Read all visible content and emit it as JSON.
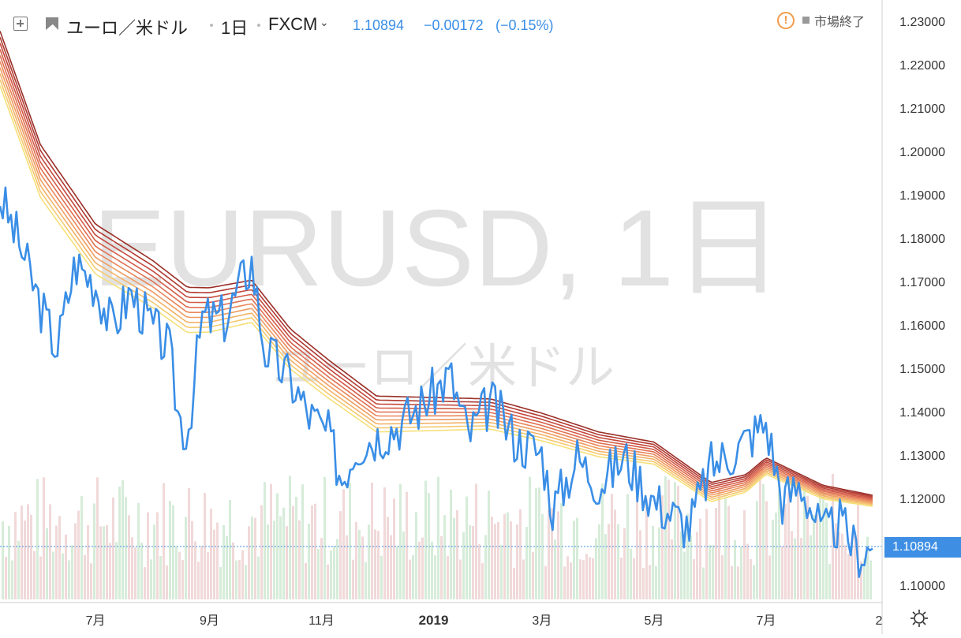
{
  "toolbar": {
    "symbol_name": "ユーロ／米ドル",
    "interval": "1日",
    "source": "FXCM",
    "last_price": "1.10894",
    "change": "−0.00172",
    "change_pct": "(−0.15%)",
    "market_status": "市場終了",
    "icons": [
      "compare-icon",
      "flag-icon",
      "chevron-down-icon",
      "alert-icon",
      "settings-icon"
    ]
  },
  "watermark": {
    "symbol": "EURUSD, 1日",
    "description": "ユーロ／米ドル"
  },
  "chart_data": {
    "type": "line",
    "title": "ユーロ／米ドル",
    "interval": "1日",
    "source": "FXCM",
    "ylim": [
      1.095,
      1.235
    ],
    "y_ticks": [
      "1.23000",
      "1.22000",
      "1.21000",
      "1.20000",
      "1.19000",
      "1.18000",
      "1.17000",
      "1.16000",
      "1.15000",
      "1.14000",
      "1.13000",
      "1.12000",
      "1.10000"
    ],
    "x_ticks": [
      "7月",
      "9月",
      "11月",
      "2019",
      "3月",
      "5月",
      "7月",
      "2"
    ],
    "x_tick_dates": [
      "2018-07-01",
      "2018-09-01",
      "2018-11-01",
      "2019-01-01",
      "2019-03-01",
      "2019-05-01",
      "2019-07-01",
      "2019-09-01"
    ],
    "last_price_label": "1.10894",
    "last_price": 1.10894,
    "grid": false,
    "colors": {
      "price": "#3a8ee6",
      "ribbon": [
        "#f6e07a",
        "#f5c96f",
        "#f3b268",
        "#ef9c62",
        "#ea865a",
        "#e07052",
        "#d35c47",
        "#c4493d",
        "#b03a32",
        "#9a2f27"
      ],
      "volume_up": "#d6ecd9",
      "volume_down": "#f1d9d9"
    },
    "series": [
      {
        "type": "line",
        "x": [
          "2018-05-10",
          "2018-05-20",
          "2018-06-01",
          "2018-06-10",
          "2018-06-20",
          "2018-07-01",
          "2018-07-10",
          "2018-07-20",
          "2018-08-01",
          "2018-08-10",
          "2018-08-15",
          "2018-08-20",
          "2018-08-28",
          "2018-09-10",
          "2018-09-20",
          "2018-09-24",
          "2018-10-01",
          "2018-10-15",
          "2018-10-25",
          "2018-11-05",
          "2018-11-12",
          "2018-11-20",
          "2018-12-01",
          "2018-12-15",
          "2019-01-01",
          "2019-01-10",
          "2019-01-20",
          "2019-02-01",
          "2019-02-15",
          "2019-03-01",
          "2019-03-07",
          "2019-03-20",
          "2019-04-01",
          "2019-04-15",
          "2019-05-01",
          "2019-05-20",
          "2019-06-01",
          "2019-06-15",
          "2019-06-25",
          "2019-07-01",
          "2019-07-10",
          "2019-07-20",
          "2019-08-01",
          "2019-08-10",
          "2019-08-20",
          "2019-08-28"
        ],
        "values": [
          1.19,
          1.18,
          1.165,
          1.155,
          1.175,
          1.17,
          1.16,
          1.168,
          1.16,
          1.155,
          1.14,
          1.135,
          1.162,
          1.162,
          1.172,
          1.175,
          1.155,
          1.148,
          1.14,
          1.135,
          1.125,
          1.133,
          1.135,
          1.138,
          1.145,
          1.149,
          1.135,
          1.143,
          1.134,
          1.131,
          1.118,
          1.13,
          1.124,
          1.13,
          1.12,
          1.114,
          1.128,
          1.132,
          1.136,
          1.138,
          1.12,
          1.124,
          1.112,
          1.115,
          1.108,
          1.109
        ]
      },
      {
        "type": "ema_ribbon",
        "x": [
          "2018-05-10",
          "2018-06-01",
          "2018-07-01",
          "2018-08-01",
          "2018-08-20",
          "2018-09-01",
          "2018-09-24",
          "2018-10-15",
          "2018-11-05",
          "2018-12-01",
          "2019-01-01",
          "2019-02-01",
          "2019-03-01",
          "2019-04-01",
          "2019-05-01",
          "2019-06-01",
          "2019-06-20",
          "2019-07-01",
          "2019-08-01",
          "2019-08-28"
        ],
        "values": [
          1.222,
          1.196,
          1.178,
          1.17,
          1.164,
          1.164,
          1.166,
          1.155,
          1.148,
          1.14,
          1.14,
          1.14,
          1.137,
          1.133,
          1.131,
          1.122,
          1.124,
          1.128,
          1.122,
          1.12
        ]
      }
    ]
  }
}
